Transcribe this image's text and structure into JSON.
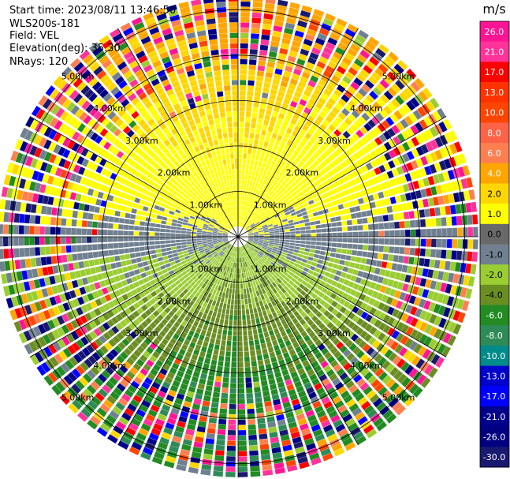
{
  "chart_data": {
    "type": "heatmap",
    "subtype": "radar-ppi",
    "info": {
      "start_time": "Start time: 2023/08/11 13:46:50",
      "instrument": "WLS200s-181",
      "field": "Field: VEL",
      "elevation": "Elevation(deg): 35.30",
      "nrays": "NRays: 120"
    },
    "rays": 120,
    "range_rings_km": [
      1.0,
      2.0,
      3.0,
      4.0,
      5.0
    ],
    "max_range_km": 5.3,
    "ring_labels": [
      "1.00km",
      "2.00km",
      "3.00km",
      "4.00km",
      "5.00km"
    ],
    "colorbar": {
      "unit": "m/s",
      "ticks": [
        "26.0",
        "21.0",
        "17.0",
        "13.0",
        "10.0",
        "8.0",
        "6.0",
        "4.0",
        "2.0",
        "1.0",
        "0.0",
        "-1.0",
        "-2.0",
        "-4.0",
        "-6.0",
        "-8.0",
        "-10.0",
        "-13.0",
        "-17.0",
        "-21.0",
        "-26.0",
        "-30.0"
      ],
      "colors": [
        "#ff1493",
        "#ff3399",
        "#ff0000",
        "#ff3300",
        "#ff4500",
        "#ff6347",
        "#ff7f50",
        "#ffa500",
        "#ffd700",
        "#ffff00",
        "#696969",
        "#708090",
        "#9acd32",
        "#6b8e23",
        "#228b22",
        "#2e8b57",
        "#008b8b",
        "#0000cd",
        "#0000ff",
        "#00008b",
        "#000080",
        "#191970"
      ]
    }
  }
}
